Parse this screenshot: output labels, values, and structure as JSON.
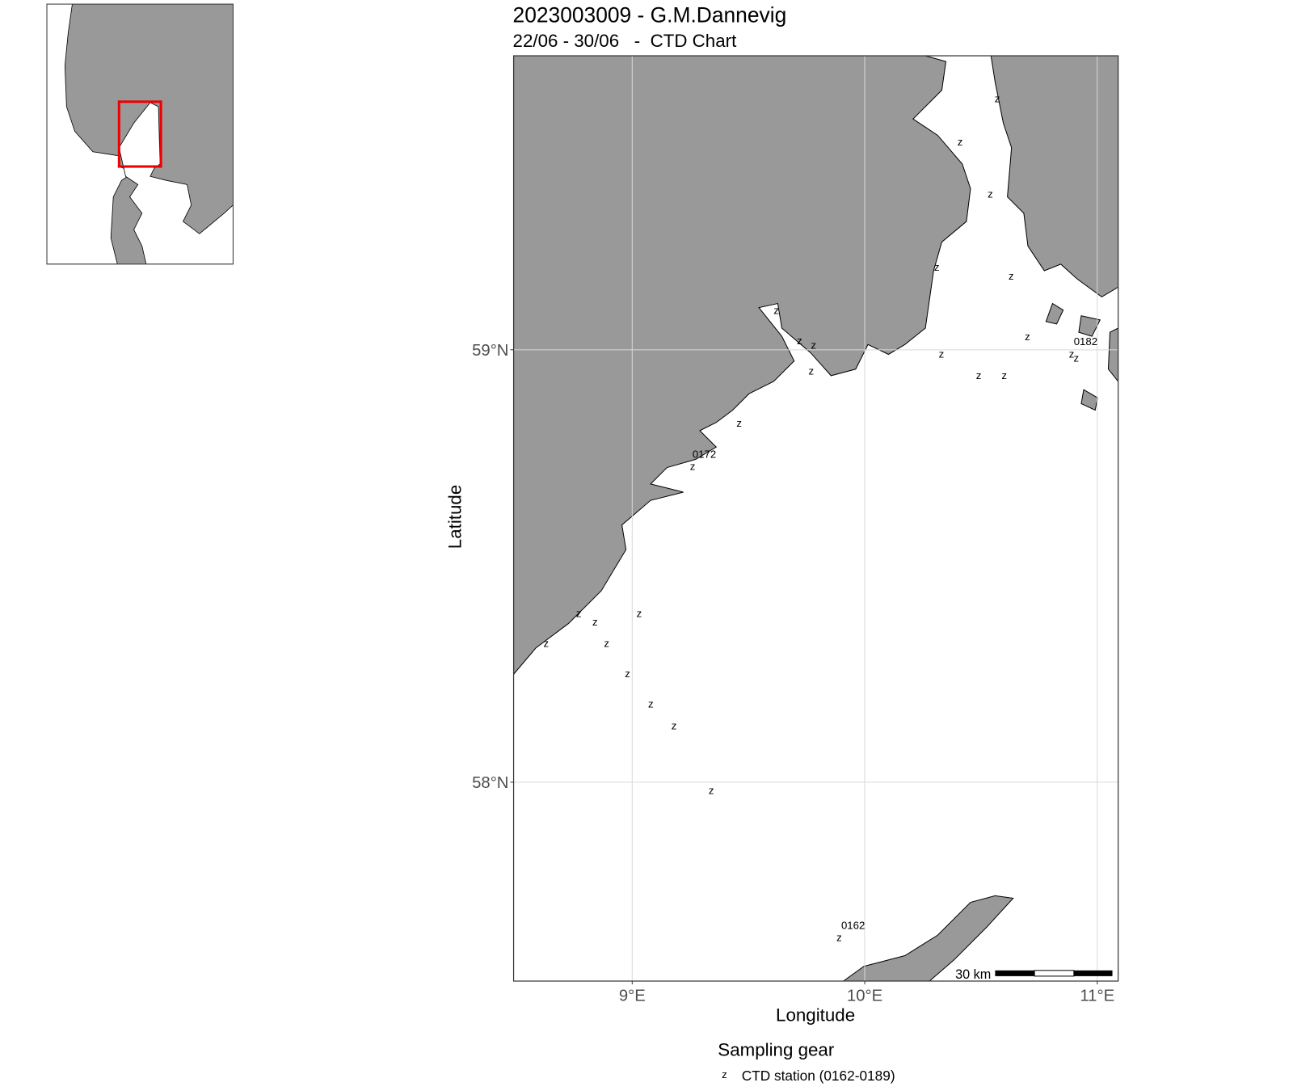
{
  "chart_data": {
    "type": "map",
    "title": "2023003009 - G.M.Dannevig",
    "subtitle": "22/06 - 30/06   -  CTD Chart",
    "x_label": "Longitude",
    "y_label": "Latitude",
    "xlim": [
      8.49,
      11.09
    ],
    "ylim": [
      57.54,
      59.68
    ],
    "xticks": [
      {
        "value": 9,
        "label": "9°E"
      },
      {
        "value": 10,
        "label": "10°E"
      },
      {
        "value": 11,
        "label": "11°E"
      }
    ],
    "yticks": [
      {
        "value": 58,
        "label": "58°N"
      },
      {
        "value": 59,
        "label": "59°N"
      }
    ],
    "grid": true,
    "legend_title": "Sampling gear",
    "scale_bar": "30 km",
    "series": [
      {
        "name": "CTD station (0162-0189)",
        "symbol": "z",
        "x": [
          10.57,
          10.41,
          10.54,
          10.31,
          10.63,
          9.62,
          9.72,
          9.78,
          10.7,
          10.33,
          10.89,
          10.91,
          9.77,
          10.49,
          10.6,
          9.46,
          9.26,
          8.77,
          8.84,
          9.03,
          8.63,
          8.89,
          8.98,
          9.08,
          9.18,
          9.34,
          9.89
        ],
        "y": [
          59.58,
          59.48,
          59.36,
          59.19,
          59.17,
          59.09,
          59.02,
          59.01,
          59.03,
          58.99,
          58.99,
          58.98,
          58.95,
          58.94,
          58.94,
          58.83,
          58.73,
          58.39,
          58.37,
          58.39,
          58.32,
          58.32,
          58.25,
          58.18,
          58.13,
          57.98,
          57.64
        ]
      }
    ],
    "annotations": [
      {
        "text": "0182",
        "x": 10.95,
        "y": 59.02
      },
      {
        "text": "0172",
        "x": 9.31,
        "y": 58.76
      },
      {
        "text": "0162",
        "x": 9.95,
        "y": 57.67
      }
    ]
  }
}
